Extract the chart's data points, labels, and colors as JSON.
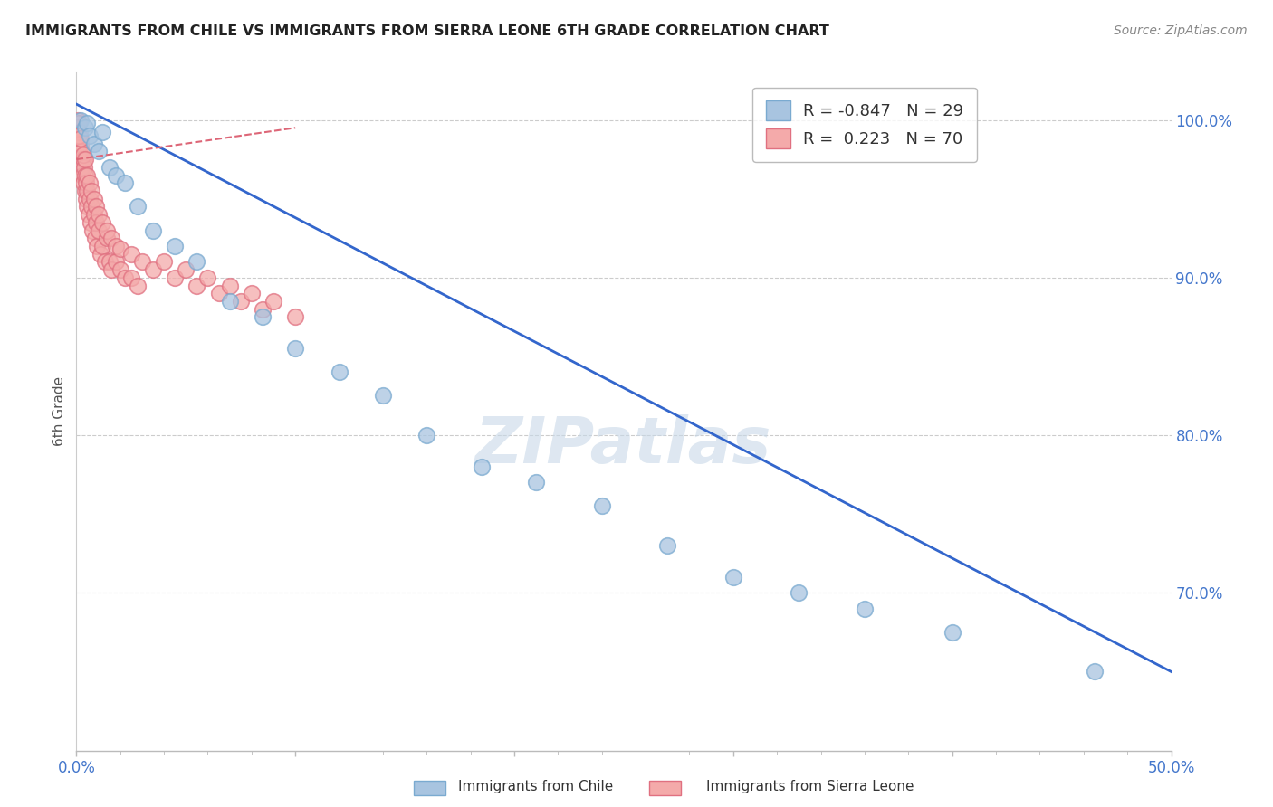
{
  "title": "IMMIGRANTS FROM CHILE VS IMMIGRANTS FROM SIERRA LEONE 6TH GRADE CORRELATION CHART",
  "source": "Source: ZipAtlas.com",
  "ylabel": "6th Grade",
  "xlim": [
    0.0,
    50.0
  ],
  "ylim": [
    60.0,
    103.0
  ],
  "yticks": [
    70.0,
    80.0,
    90.0,
    100.0
  ],
  "ytick_labels": [
    "70.0%",
    "80.0%",
    "90.0%",
    "100.0%"
  ],
  "xticks": [
    0.0,
    10.0,
    20.0,
    30.0,
    40.0,
    50.0
  ],
  "xtick_labels": [
    "0.0%",
    "",
    "",
    "",
    "",
    "50.0%"
  ],
  "chile_color": "#A8C4E0",
  "chile_edge": "#7AAAD0",
  "sierra_color": "#F4AAAA",
  "sierra_edge": "#E07080",
  "chile_R": -0.847,
  "chile_N": 29,
  "sierra_R": 0.223,
  "sierra_N": 70,
  "chile_line_color": "#3366CC",
  "sierra_line_color": "#DD6677",
  "legend_label_chile": "Immigrants from Chile",
  "legend_label_sierra": "Immigrants from Sierra Leone",
  "chile_x": [
    0.2,
    0.4,
    0.5,
    0.6,
    0.8,
    1.0,
    1.2,
    1.5,
    1.8,
    2.2,
    2.8,
    3.5,
    4.5,
    5.5,
    7.0,
    8.5,
    10.0,
    12.0,
    14.0,
    16.0,
    18.5,
    21.0,
    24.0,
    27.0,
    30.0,
    33.0,
    36.0,
    40.0,
    46.5
  ],
  "chile_y": [
    100.0,
    99.5,
    99.8,
    99.0,
    98.5,
    98.0,
    99.2,
    97.0,
    96.5,
    96.0,
    94.5,
    93.0,
    92.0,
    91.0,
    88.5,
    87.5,
    85.5,
    84.0,
    82.5,
    80.0,
    78.0,
    77.0,
    75.5,
    73.0,
    71.0,
    70.0,
    69.0,
    67.5,
    65.0
  ],
  "sierra_x": [
    0.05,
    0.08,
    0.1,
    0.12,
    0.15,
    0.18,
    0.2,
    0.22,
    0.25,
    0.28,
    0.3,
    0.32,
    0.35,
    0.38,
    0.4,
    0.42,
    0.45,
    0.48,
    0.5,
    0.55,
    0.6,
    0.65,
    0.7,
    0.75,
    0.8,
    0.85,
    0.9,
    0.95,
    1.0,
    1.1,
    1.2,
    1.3,
    1.4,
    1.5,
    1.6,
    1.8,
    2.0,
    2.2,
    2.5,
    2.8,
    0.1,
    0.2,
    0.3,
    0.4,
    0.5,
    0.6,
    0.7,
    0.8,
    0.9,
    1.0,
    1.2,
    1.4,
    1.6,
    1.8,
    2.0,
    2.5,
    3.0,
    3.5,
    4.0,
    4.5,
    5.0,
    5.5,
    6.0,
    6.5,
    7.0,
    7.5,
    8.0,
    8.5,
    9.0,
    10.0
  ],
  "sierra_y": [
    100.0,
    99.5,
    99.8,
    98.0,
    99.2,
    97.5,
    98.5,
    97.0,
    98.0,
    96.5,
    97.5,
    96.0,
    97.0,
    95.5,
    96.5,
    95.0,
    96.0,
    94.5,
    95.5,
    94.0,
    95.0,
    93.5,
    94.5,
    93.0,
    94.0,
    92.5,
    93.5,
    92.0,
    93.0,
    91.5,
    92.0,
    91.0,
    92.5,
    91.0,
    90.5,
    91.0,
    90.5,
    90.0,
    90.0,
    89.5,
    99.0,
    98.8,
    97.8,
    97.5,
    96.5,
    96.0,
    95.5,
    95.0,
    94.5,
    94.0,
    93.5,
    93.0,
    92.5,
    92.0,
    91.8,
    91.5,
    91.0,
    90.5,
    91.0,
    90.0,
    90.5,
    89.5,
    90.0,
    89.0,
    89.5,
    88.5,
    89.0,
    88.0,
    88.5,
    87.5
  ],
  "watermark": "ZIPatlas",
  "watermark_color": "#C8D8E8",
  "background_color": "#FFFFFF"
}
